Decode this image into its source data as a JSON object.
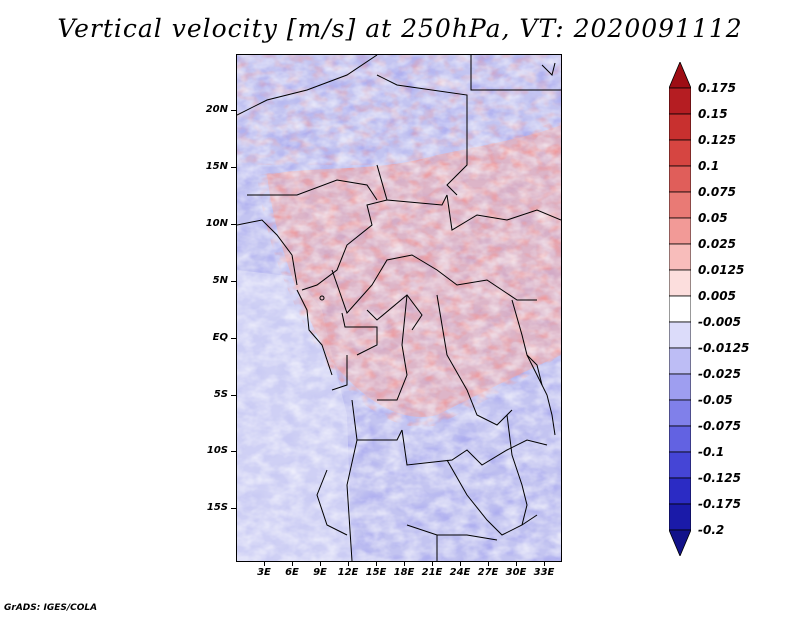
{
  "title": "Vertical velocity [m/s] at 250hPa, VT: 2020091112",
  "credit": "GrADS: IGES/COLA",
  "lat_labels": [
    "20N",
    "15N",
    "10N",
    "5N",
    "EQ",
    "5S",
    "10S",
    "15S"
  ],
  "lon_labels": [
    "3E",
    "6E",
    "9E",
    "12E",
    "15E",
    "18E",
    "21E",
    "24E",
    "27E",
    "30E",
    "33E"
  ],
  "colorbar": {
    "labels": [
      "0.175",
      "0.15",
      "0.125",
      "0.1",
      "0.075",
      "0.05",
      "0.025",
      "0.0125",
      "0.005",
      "-0.005",
      "-0.0125",
      "-0.025",
      "-0.05",
      "-0.075",
      "-0.1",
      "-0.125",
      "-0.175",
      "-0.2"
    ],
    "colors": [
      "#9e0d14",
      "#b51d22",
      "#c8302f",
      "#d64541",
      "#e05e5a",
      "#e97a75",
      "#f29a97",
      "#f8bdbb",
      "#fcdedd",
      "#ffffff",
      "#dcdcfa",
      "#bdbdf5",
      "#9e9ef0",
      "#8080ea",
      "#6262e2",
      "#4545d6",
      "#2b2bc4",
      "#1a1aa8",
      "#12128a"
    ]
  },
  "chart_data": {
    "type": "heatmap",
    "title": "Vertical velocity [m/s] at 250hPa, VT: 2020091112",
    "variable": "Vertical velocity",
    "units": "m/s",
    "level": "250hPa",
    "valid_time": "2020091112",
    "lon_range": [
      0,
      35
    ],
    "lat_range": [
      -20,
      25
    ],
    "x_ticks": [
      "3E",
      "6E",
      "9E",
      "12E",
      "15E",
      "18E",
      "21E",
      "24E",
      "27E",
      "30E",
      "33E"
    ],
    "y_ticks": [
      "20N",
      "15N",
      "10N",
      "5N",
      "EQ",
      "5S",
      "10S",
      "15S"
    ],
    "contour_levels": [
      -0.2,
      -0.175,
      -0.125,
      -0.1,
      -0.075,
      -0.05,
      -0.025,
      -0.0125,
      -0.005,
      0.005,
      0.0125,
      0.025,
      0.05,
      0.075,
      0.1,
      0.125,
      0.15,
      0.175
    ]
  }
}
